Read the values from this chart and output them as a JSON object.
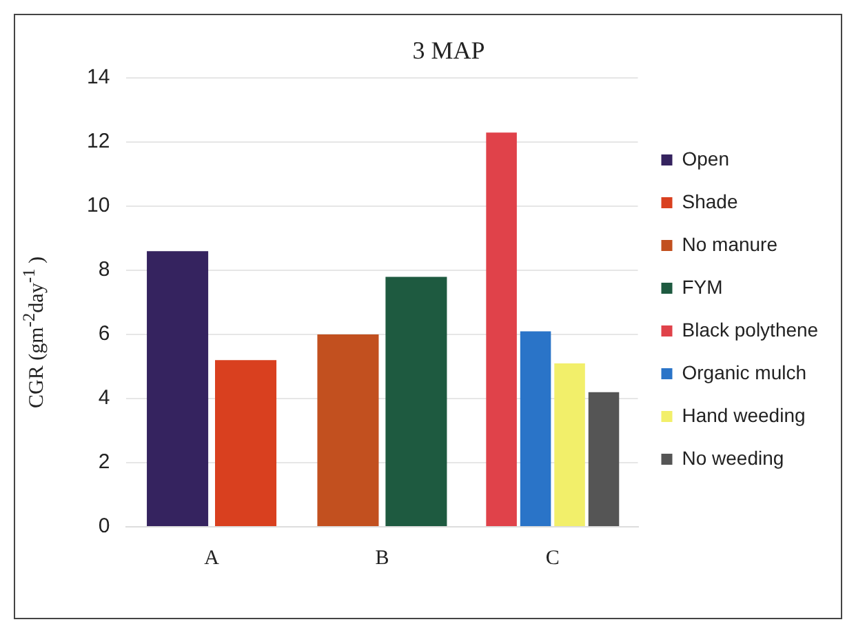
{
  "chart_data": {
    "type": "bar",
    "title": "3 MAP",
    "ylabel": "CGR (gm$^{-2}$day$^{-1}$ )",
    "categories": [
      "A",
      "B",
      "C"
    ],
    "series": [
      {
        "name": "Open",
        "color": "#35235f",
        "values": [
          8.6,
          null,
          null
        ]
      },
      {
        "name": "Shade",
        "color": "#d9401f",
        "values": [
          5.2,
          null,
          null
        ]
      },
      {
        "name": "No manure",
        "color": "#c2501f",
        "values": [
          null,
          6.0,
          null
        ]
      },
      {
        "name": "FYM",
        "color": "#1e5a40",
        "values": [
          null,
          7.8,
          null
        ]
      },
      {
        "name": "Black polythene",
        "color": "#e0424a",
        "values": [
          null,
          null,
          12.3
        ]
      },
      {
        "name": "Organic mulch",
        "color": "#2a74c8",
        "values": [
          null,
          null,
          6.1
        ]
      },
      {
        "name": "Hand weeding",
        "color": "#f2ef6a",
        "values": [
          null,
          null,
          5.1
        ]
      },
      {
        "name": "No weeding",
        "color": "#555555",
        "values": [
          null,
          null,
          4.2
        ]
      }
    ],
    "ylim": [
      0,
      14
    ],
    "yticks": [
      0,
      2,
      4,
      6,
      8,
      10,
      12,
      14
    ],
    "grid": "y",
    "legend": "right"
  }
}
